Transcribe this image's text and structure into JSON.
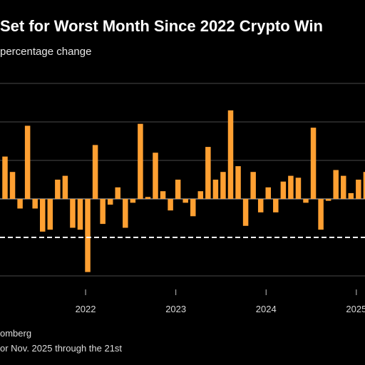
{
  "title": "Set for Worst Month Since 2022 Crypto Win",
  "subtitle": "percentage change",
  "source": "omberg",
  "note": "or Nov. 2025 through the 21st",
  "colors": {
    "bar": "#ffa032",
    "grid": "#4a4a4a",
    "zero": "#9a9a9a",
    "reference": "#ffffff",
    "background": "#000000"
  },
  "chart_data": {
    "type": "bar",
    "ylim": [
      -42,
      62
    ],
    "reference_line": -20,
    "grid": true,
    "x_tick_labels": [
      "2022",
      "2023",
      "2024",
      "2025"
    ],
    "x_tick_positions": [
      11,
      23,
      35,
      47
    ],
    "values": [
      22,
      14,
      -5,
      38,
      -5,
      -17,
      -16,
      10,
      12,
      -15,
      -16,
      -38,
      28,
      -13,
      -3,
      6,
      -15,
      -2,
      39,
      1,
      24,
      4,
      -6,
      10,
      -2,
      -9,
      4,
      27,
      10,
      14,
      46,
      17,
      -14,
      14,
      -7,
      6,
      -7,
      9,
      12,
      11,
      -2,
      37,
      -16,
      -1,
      15,
      12,
      3,
      10,
      14
    ]
  }
}
